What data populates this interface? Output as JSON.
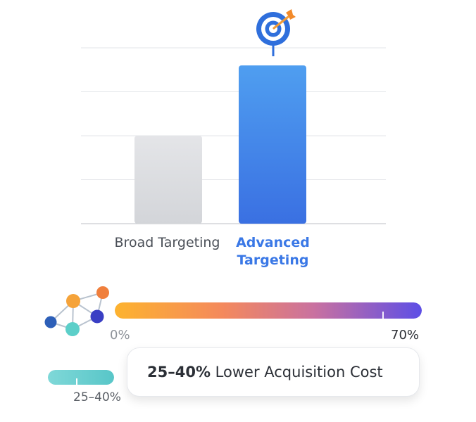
{
  "chart_data": {
    "type": "bar",
    "categories": [
      "Broad Targeting",
      "Advanced Targeting"
    ],
    "values": [
      2.0,
      3.6
    ],
    "title": "",
    "xlabel": "",
    "ylabel": "",
    "ylim": [
      0,
      4
    ],
    "grid": true,
    "colors": [
      "#dcdde0",
      "#3c7ce6"
    ],
    "highlight_category": "Advanced Targeting",
    "annotation_icon": "target-dart-icon"
  },
  "range_scale": {
    "min_label": "0%",
    "max_label": "70%",
    "marker_percent": 70,
    "gradient_colors": [
      "#fdb32f",
      "#f4895c",
      "#c971a0",
      "#5d4ee6"
    ],
    "icon": "network-nodes-icon"
  },
  "reduction_indicator": {
    "range_label": "25–40%",
    "fill_fraction": 1.0,
    "color": "#66cccc"
  },
  "callout": {
    "highlight": "25–40%",
    "text": " Lower Acquisition Cost"
  }
}
